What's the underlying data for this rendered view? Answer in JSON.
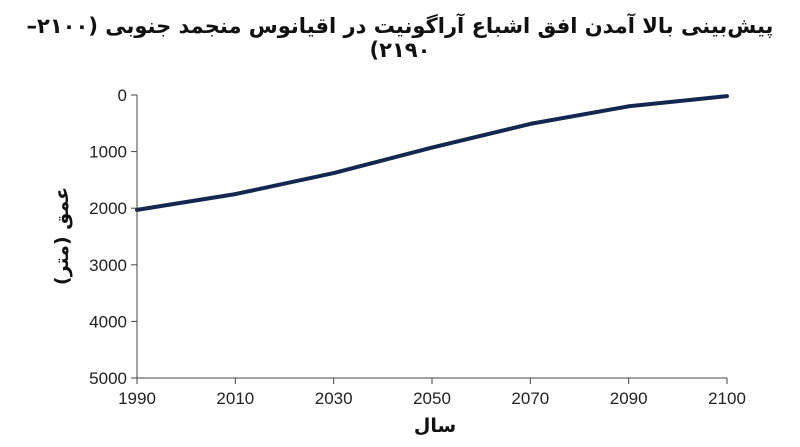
{
  "chart_data": {
    "type": "line",
    "title": "پیش‌بینی بالا آمدن افق اشباع آراگونیت در اقیانوس منجمد جنوبی (۲۱۰۰–۲۱۹۰)",
    "xlabel": "سال",
    "ylabel": "عمق (متر)",
    "xlim": [
      1990,
      2100
    ],
    "ylim": [
      0,
      5000
    ],
    "y_inverted": true,
    "grid": false,
    "x_ticks": [
      "1990",
      "2010",
      "2030",
      "2050",
      "2070",
      "2090",
      "2100"
    ],
    "y_ticks": [
      "0",
      "1000",
      "2000",
      "3000",
      "4000",
      "5000"
    ],
    "series": [
      {
        "x": [
          1990,
          2010,
          2030,
          2050,
          2070,
          2090,
          2110
        ],
        "values": [
          2030,
          1750,
          1380,
          930,
          510,
          200,
          20
        ],
        "color": "#13284f"
      }
    ]
  }
}
